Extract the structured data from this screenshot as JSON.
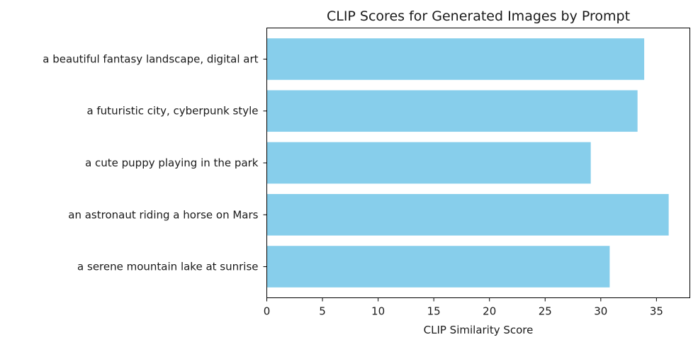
{
  "chart_data": {
    "type": "bar",
    "orientation": "horizontal",
    "title": "CLIP Scores for Generated Images by Prompt",
    "xlabel": "CLIP Similarity Score",
    "ylabel": "",
    "categories": [
      "a serene mountain lake at sunrise",
      "an astronaut riding a horse on Mars",
      "a cute puppy playing in the park",
      "a futuristic city, cyberpunk style",
      "a beautiful fantasy landscape, digital art"
    ],
    "values": [
      30.8,
      36.1,
      29.1,
      33.3,
      33.9
    ],
    "xlim": [
      0,
      38
    ],
    "xticks": [
      0,
      5,
      10,
      15,
      20,
      25,
      30,
      35
    ],
    "bar_color": "#87ceeb",
    "grid": false,
    "legend": "none"
  }
}
